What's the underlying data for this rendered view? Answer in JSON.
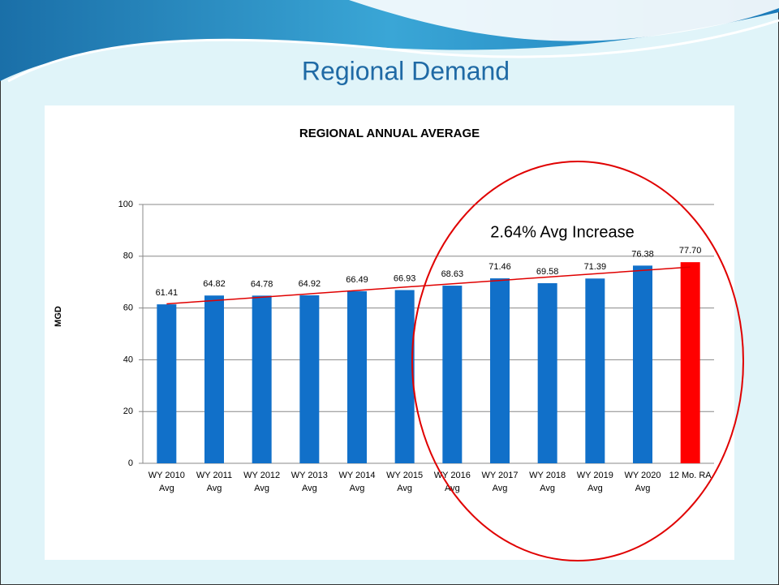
{
  "slide_title": "Regional Demand",
  "chart_data": {
    "type": "bar",
    "title": "REGIONAL ANNUAL AVERAGE",
    "y_label": "MGD",
    "categories": [
      "WY 2010\nAvg",
      "WY 2011\nAvg",
      "WY 2012\nAvg",
      "WY 2013\nAvg",
      "WY 2014\nAvg",
      "WY 2015\nAvg",
      "WY 2016\nAvg",
      "WY 2017\nAvg",
      "WY 2018\nAvg",
      "WY 2019\nAvg",
      "WY 2020\nAvg",
      "12 Mo. RA"
    ],
    "values": [
      61.41,
      64.82,
      64.78,
      64.92,
      66.49,
      66.93,
      68.63,
      71.46,
      69.58,
      71.39,
      76.38,
      77.7
    ],
    "value_labels": [
      "61.41",
      "64.82",
      "64.78",
      "64.92",
      "66.49",
      "66.93",
      "68.63",
      "71.46",
      "69.58",
      "71.39",
      "76.38",
      "77.70"
    ],
    "colors": [
      "#1170c9",
      "#1170c9",
      "#1170c9",
      "#1170c9",
      "#1170c9",
      "#1170c9",
      "#1170c9",
      "#1170c9",
      "#1170c9",
      "#1170c9",
      "#1170c9",
      "#ff0000"
    ],
    "ylim": [
      0,
      100
    ],
    "yticks": [
      0,
      20,
      40,
      60,
      80,
      100
    ],
    "grid": true,
    "trendline": true,
    "trendline_color": "#e00000",
    "annotation": "2.64% Avg Increase"
  }
}
